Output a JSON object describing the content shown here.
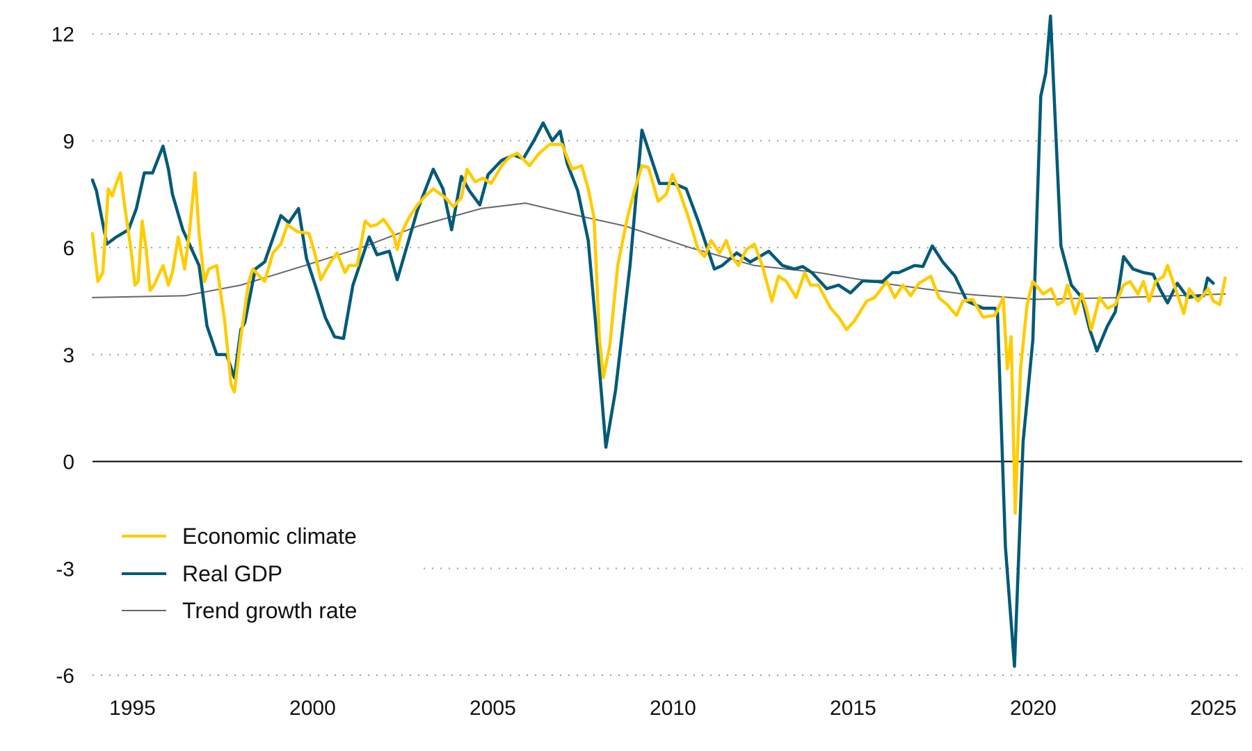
{
  "chart_data": {
    "type": "line",
    "title": "",
    "xlabel": "",
    "ylabel": "",
    "xlim": [
      1993.89,
      2025.45
    ],
    "ylim": [
      -6,
      12.5
    ],
    "x_ticks": [
      1995,
      2000,
      2005,
      2010,
      2015,
      2020,
      2025
    ],
    "x_tick_labels": [
      "1995",
      "2000",
      "2005",
      "2010",
      "2015",
      "2020",
      "2025"
    ],
    "y_ticks": [
      12,
      9,
      6,
      3,
      0,
      -3,
      -6
    ],
    "y_tick_labels": [
      "12",
      "9",
      "6",
      "3",
      "0",
      "-3",
      "-6"
    ],
    "grid": "horizontal dotted",
    "legend_position": "bottom-left",
    "series": [
      {
        "name": "Economic climate",
        "color": "#FFCC00",
        "points": [
          [
            1993.89,
            6.4
          ],
          [
            1994.04,
            5.05
          ],
          [
            1994.18,
            5.3
          ],
          [
            1994.33,
            7.65
          ],
          [
            1994.44,
            7.45
          ],
          [
            1994.55,
            7.8
          ],
          [
            1994.67,
            8.1
          ],
          [
            1994.78,
            7.2
          ],
          [
            1994.96,
            5.95
          ],
          [
            1995.07,
            4.95
          ],
          [
            1995.16,
            5.05
          ],
          [
            1995.27,
            6.75
          ],
          [
            1995.38,
            5.95
          ],
          [
            1995.49,
            4.8
          ],
          [
            1995.6,
            4.95
          ],
          [
            1995.85,
            5.5
          ],
          [
            1996.0,
            4.95
          ],
          [
            1996.11,
            5.3
          ],
          [
            1996.27,
            6.3
          ],
          [
            1996.45,
            5.4
          ],
          [
            1996.58,
            6.4
          ],
          [
            1996.74,
            8.1
          ],
          [
            1996.85,
            6.4
          ],
          [
            1997.0,
            5.05
          ],
          [
            1997.12,
            5.4
          ],
          [
            1997.34,
            5.5
          ],
          [
            1997.56,
            3.95
          ],
          [
            1997.74,
            2.15
          ],
          [
            1997.83,
            1.95
          ],
          [
            1998.01,
            3.5
          ],
          [
            1998.23,
            5.05
          ],
          [
            1998.34,
            5.4
          ],
          [
            1998.67,
            5.05
          ],
          [
            1998.9,
            5.85
          ],
          [
            1999.12,
            6.1
          ],
          [
            1999.3,
            6.65
          ],
          [
            1999.57,
            6.45
          ],
          [
            1999.9,
            6.4
          ],
          [
            2000.06,
            5.85
          ],
          [
            2000.23,
            5.1
          ],
          [
            2000.5,
            5.6
          ],
          [
            2000.68,
            5.85
          ],
          [
            2000.9,
            5.3
          ],
          [
            2001.01,
            5.5
          ],
          [
            2001.24,
            5.5
          ],
          [
            2001.46,
            6.75
          ],
          [
            2001.61,
            6.6
          ],
          [
            2001.79,
            6.65
          ],
          [
            2001.97,
            6.8
          ],
          [
            2002.24,
            6.4
          ],
          [
            2002.35,
            5.95
          ],
          [
            2002.46,
            6.4
          ],
          [
            2002.68,
            6.85
          ],
          [
            2002.91,
            7.2
          ],
          [
            2003.13,
            7.45
          ],
          [
            2003.35,
            7.65
          ],
          [
            2003.69,
            7.4
          ],
          [
            2003.91,
            7.15
          ],
          [
            2004.13,
            7.4
          ],
          [
            2004.29,
            8.2
          ],
          [
            2004.51,
            7.85
          ],
          [
            2004.73,
            7.95
          ],
          [
            2004.96,
            7.8
          ],
          [
            2005.25,
            8.3
          ],
          [
            2005.47,
            8.55
          ],
          [
            2005.69,
            8.65
          ],
          [
            2006.02,
            8.3
          ],
          [
            2006.29,
            8.65
          ],
          [
            2006.58,
            8.9
          ],
          [
            2006.92,
            8.9
          ],
          [
            2007.2,
            8.2
          ],
          [
            2007.47,
            8.3
          ],
          [
            2007.65,
            7.65
          ],
          [
            2007.81,
            6.85
          ],
          [
            2007.96,
            3.5
          ],
          [
            2008.07,
            2.35
          ],
          [
            2008.25,
            3.25
          ],
          [
            2008.47,
            5.5
          ],
          [
            2008.74,
            6.85
          ],
          [
            2008.92,
            7.55
          ],
          [
            2009.14,
            8.3
          ],
          [
            2009.32,
            8.25
          ],
          [
            2009.59,
            7.3
          ],
          [
            2009.81,
            7.5
          ],
          [
            2009.99,
            8.05
          ],
          [
            2010.21,
            7.5
          ],
          [
            2010.43,
            6.85
          ],
          [
            2010.7,
            5.95
          ],
          [
            2010.88,
            5.75
          ],
          [
            2011.06,
            6.2
          ],
          [
            2011.3,
            5.85
          ],
          [
            2011.48,
            6.2
          ],
          [
            2011.64,
            5.75
          ],
          [
            2011.82,
            5.5
          ],
          [
            2012.04,
            5.95
          ],
          [
            2012.26,
            6.1
          ],
          [
            2012.48,
            5.5
          ],
          [
            2012.75,
            4.5
          ],
          [
            2012.93,
            5.2
          ],
          [
            2013.15,
            5.05
          ],
          [
            2013.42,
            4.6
          ],
          [
            2013.66,
            5.3
          ],
          [
            2013.82,
            4.95
          ],
          [
            2014.04,
            4.95
          ],
          [
            2014.38,
            4.3
          ],
          [
            2014.6,
            4.05
          ],
          [
            2014.82,
            3.7
          ],
          [
            2015.04,
            3.95
          ],
          [
            2015.38,
            4.5
          ],
          [
            2015.6,
            4.6
          ],
          [
            2015.94,
            5.05
          ],
          [
            2016.16,
            4.6
          ],
          [
            2016.38,
            4.95
          ],
          [
            2016.6,
            4.65
          ],
          [
            2016.83,
            5.0
          ],
          [
            2017.16,
            5.2
          ],
          [
            2017.38,
            4.6
          ],
          [
            2017.61,
            4.4
          ],
          [
            2017.87,
            4.1
          ],
          [
            2018.05,
            4.5
          ],
          [
            2018.32,
            4.55
          ],
          [
            2018.61,
            4.05
          ],
          [
            2018.94,
            4.1
          ],
          [
            2019.17,
            4.6
          ],
          [
            2019.28,
            2.6
          ],
          [
            2019.39,
            3.5
          ],
          [
            2019.5,
            -1.45
          ],
          [
            2019.65,
            2.6
          ],
          [
            2019.83,
            4.4
          ],
          [
            2019.99,
            5.05
          ],
          [
            2020.28,
            4.7
          ],
          [
            2020.5,
            4.85
          ],
          [
            2020.68,
            4.4
          ],
          [
            2020.84,
            4.5
          ],
          [
            2020.95,
            4.95
          ],
          [
            2021.17,
            4.15
          ],
          [
            2021.35,
            4.7
          ],
          [
            2021.5,
            4.2
          ],
          [
            2021.61,
            3.7
          ],
          [
            2021.84,
            4.6
          ],
          [
            2022.06,
            4.3
          ],
          [
            2022.28,
            4.4
          ],
          [
            2022.51,
            4.95
          ],
          [
            2022.69,
            5.05
          ],
          [
            2022.91,
            4.7
          ],
          [
            2023.06,
            5.05
          ],
          [
            2023.22,
            4.5
          ],
          [
            2023.4,
            5.05
          ],
          [
            2023.62,
            5.2
          ],
          [
            2023.73,
            5.5
          ],
          [
            2023.95,
            4.85
          ],
          [
            2024.18,
            4.15
          ],
          [
            2024.33,
            4.85
          ],
          [
            2024.57,
            4.5
          ],
          [
            2024.7,
            4.65
          ],
          [
            2024.86,
            4.85
          ],
          [
            2025.0,
            4.5
          ],
          [
            2025.18,
            4.4
          ],
          [
            2025.33,
            5.15
          ]
        ]
      },
      {
        "name": "Real GDP",
        "color": "#005A78",
        "points": [
          [
            1993.89,
            7.9
          ],
          [
            1994.0,
            7.6
          ],
          [
            1994.29,
            6.1
          ],
          [
            1994.55,
            6.3
          ],
          [
            1994.89,
            6.5
          ],
          [
            1995.11,
            7.1
          ],
          [
            1995.33,
            8.1
          ],
          [
            1995.56,
            8.1
          ],
          [
            1995.85,
            8.85
          ],
          [
            1996.0,
            8.2
          ],
          [
            1996.11,
            7.5
          ],
          [
            1996.4,
            6.5
          ],
          [
            1996.85,
            5.5
          ],
          [
            1997.07,
            3.8
          ],
          [
            1997.34,
            3.0
          ],
          [
            1997.61,
            3.0
          ],
          [
            1997.83,
            2.35
          ],
          [
            1998.01,
            3.7
          ],
          [
            1998.12,
            3.9
          ],
          [
            1998.41,
            5.4
          ],
          [
            1998.67,
            5.6
          ],
          [
            1999.12,
            6.9
          ],
          [
            1999.34,
            6.7
          ],
          [
            1999.61,
            7.1
          ],
          [
            1999.83,
            5.7
          ],
          [
            2000.12,
            4.8
          ],
          [
            2000.35,
            4.05
          ],
          [
            2000.61,
            3.5
          ],
          [
            2000.86,
            3.45
          ],
          [
            2001.12,
            4.95
          ],
          [
            2001.57,
            6.3
          ],
          [
            2001.79,
            5.8
          ],
          [
            2002.13,
            5.9
          ],
          [
            2002.35,
            5.1
          ],
          [
            2002.91,
            7.05
          ],
          [
            2003.35,
            8.2
          ],
          [
            2003.62,
            7.65
          ],
          [
            2003.86,
            6.5
          ],
          [
            2004.13,
            8.0
          ],
          [
            2004.35,
            7.6
          ],
          [
            2004.64,
            7.2
          ],
          [
            2004.87,
            8.05
          ],
          [
            2005.25,
            8.45
          ],
          [
            2005.58,
            8.6
          ],
          [
            2005.85,
            8.5
          ],
          [
            2006.14,
            9.0
          ],
          [
            2006.4,
            9.5
          ],
          [
            2006.65,
            9.0
          ],
          [
            2006.87,
            9.27
          ],
          [
            2007.07,
            8.35
          ],
          [
            2007.36,
            7.6
          ],
          [
            2007.65,
            6.2
          ],
          [
            2007.85,
            3.95
          ],
          [
            2008.14,
            0.4
          ],
          [
            2008.41,
            2.0
          ],
          [
            2008.81,
            5.5
          ],
          [
            2009.14,
            9.3
          ],
          [
            2009.63,
            7.8
          ],
          [
            2010.03,
            7.8
          ],
          [
            2010.37,
            7.65
          ],
          [
            2010.7,
            6.75
          ],
          [
            2011.15,
            5.4
          ],
          [
            2011.37,
            5.5
          ],
          [
            2011.77,
            5.85
          ],
          [
            2012.15,
            5.6
          ],
          [
            2012.66,
            5.9
          ],
          [
            2013.04,
            5.5
          ],
          [
            2013.37,
            5.4
          ],
          [
            2013.6,
            5.47
          ],
          [
            2013.86,
            5.3
          ],
          [
            2014.27,
            4.85
          ],
          [
            2014.6,
            4.95
          ],
          [
            2014.93,
            4.73
          ],
          [
            2015.27,
            5.07
          ],
          [
            2015.6,
            5.05
          ],
          [
            2015.82,
            5.05
          ],
          [
            2016.09,
            5.3
          ],
          [
            2016.27,
            5.3
          ],
          [
            2016.71,
            5.5
          ],
          [
            2016.94,
            5.47
          ],
          [
            2017.2,
            6.05
          ],
          [
            2017.49,
            5.6
          ],
          [
            2017.83,
            5.2
          ],
          [
            2018.16,
            4.5
          ],
          [
            2018.61,
            4.3
          ],
          [
            2018.94,
            4.3
          ],
          [
            2019.01,
            4.17
          ],
          [
            2019.23,
            -2.4
          ],
          [
            2019.48,
            -5.75
          ],
          [
            2019.72,
            0.55
          ],
          [
            2019.99,
            3.4
          ],
          [
            2020.21,
            10.25
          ],
          [
            2020.35,
            10.9
          ],
          [
            2020.48,
            12.5
          ],
          [
            2020.77,
            6.05
          ],
          [
            2021.06,
            4.95
          ],
          [
            2021.35,
            4.6
          ],
          [
            2021.57,
            3.7
          ],
          [
            2021.77,
            3.1
          ],
          [
            2022.06,
            3.8
          ],
          [
            2022.28,
            4.2
          ],
          [
            2022.51,
            5.75
          ],
          [
            2022.77,
            5.4
          ],
          [
            2023.06,
            5.3
          ],
          [
            2023.33,
            5.25
          ],
          [
            2023.51,
            4.85
          ],
          [
            2023.73,
            4.45
          ],
          [
            2024.0,
            5.0
          ],
          [
            2024.29,
            4.6
          ],
          [
            2024.62,
            4.65
          ],
          [
            2024.73,
            4.65
          ],
          [
            2024.84,
            5.15
          ],
          [
            2025.0,
            5.0
          ]
        ]
      },
      {
        "name": "Trend growth rate",
        "color": "#666666",
        "points": [
          [
            1993.89,
            4.6
          ],
          [
            1996.45,
            4.65
          ],
          [
            1998.01,
            4.95
          ],
          [
            1999.79,
            5.5
          ],
          [
            2001.35,
            6.0
          ],
          [
            2002.91,
            6.6
          ],
          [
            2004.69,
            7.1
          ],
          [
            2005.91,
            7.25
          ],
          [
            2007.36,
            6.9
          ],
          [
            2008.7,
            6.6
          ],
          [
            2010.48,
            6.0
          ],
          [
            2012.26,
            5.5
          ],
          [
            2014.04,
            5.3
          ],
          [
            2015.82,
            5.0
          ],
          [
            2018.05,
            4.7
          ],
          [
            2020.06,
            4.55
          ],
          [
            2022.51,
            4.6
          ],
          [
            2025.33,
            4.7
          ]
        ]
      }
    ]
  }
}
